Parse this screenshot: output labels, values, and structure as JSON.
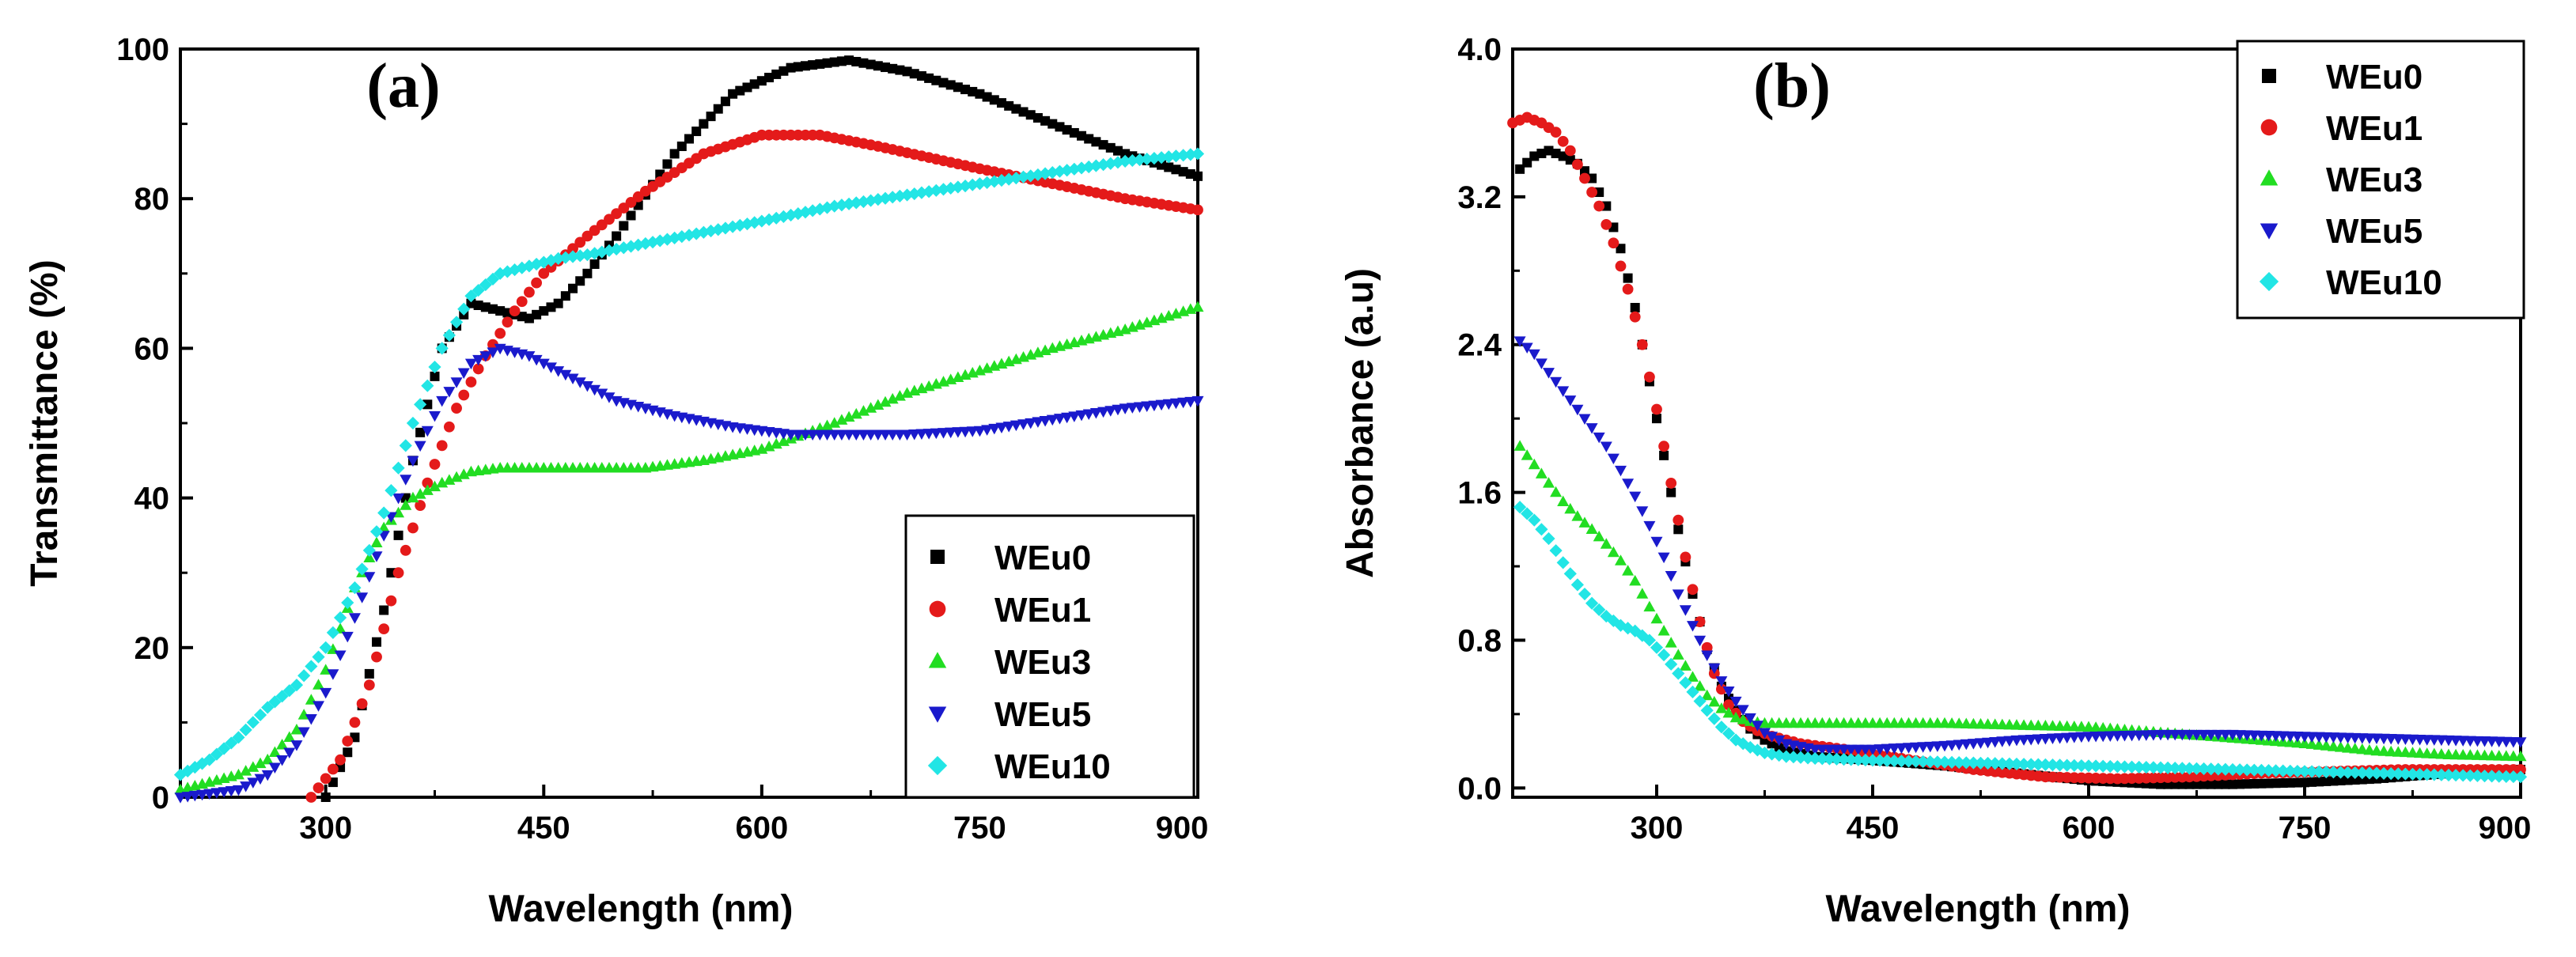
{
  "colors": {
    "WEu0": "#000000",
    "WEu1": "#e41a1a",
    "WEu3": "#22dd22",
    "WEu5": "#1a1acc",
    "WEu10": "#22e5e5",
    "panel_label": "#cc33cc"
  },
  "chart_data": [
    {
      "type": "scatter",
      "panel_label": "(a)",
      "xlabel": "Wavelength (nm)",
      "ylabel": "Transmittance (%)",
      "xlim": [
        200,
        900
      ],
      "ylim": [
        0,
        100
      ],
      "xticks": [
        300,
        450,
        600,
        750,
        900
      ],
      "xtick_labels": [
        "300",
        "450",
        "600",
        "750",
        "900"
      ],
      "yticks": [
        0,
        20,
        40,
        60,
        80,
        100
      ],
      "ytick_labels": [
        "0",
        "20",
        "40",
        "60",
        "80",
        "100"
      ],
      "legend_position": "bottom-right",
      "series": [
        {
          "name": "WEu0",
          "marker": "square",
          "x": [
            300,
            320,
            340,
            360,
            380,
            400,
            420,
            440,
            460,
            480,
            500,
            540,
            580,
            620,
            660,
            700,
            750,
            800,
            850,
            900
          ],
          "y": [
            0,
            8,
            25,
            45,
            60,
            66,
            65,
            64,
            66,
            70,
            75,
            86,
            94,
            97.5,
            98.5,
            97,
            94,
            90,
            86,
            83
          ]
        },
        {
          "name": "WEu1",
          "marker": "circle",
          "x": [
            290,
            310,
            330,
            350,
            370,
            390,
            410,
            430,
            450,
            480,
            520,
            560,
            600,
            640,
            680,
            750,
            800,
            850,
            900
          ],
          "y": [
            0,
            5,
            15,
            30,
            42,
            52,
            59,
            65,
            70,
            75,
            81,
            86,
            88.5,
            88.5,
            87,
            84,
            82,
            80,
            78.5
          ]
        },
        {
          "name": "WEu3",
          "marker": "triangle-up",
          "x": [
            200,
            220,
            240,
            260,
            280,
            300,
            320,
            340,
            360,
            380,
            400,
            420,
            450,
            480,
            520,
            560,
            600,
            650,
            700,
            750,
            800,
            850,
            900
          ],
          "y": [
            1,
            2,
            3,
            5,
            9,
            17,
            28,
            36,
            40,
            42,
            43.5,
            44,
            44,
            44,
            44,
            45,
            46.5,
            50,
            54,
            57,
            60,
            62.5,
            65.5
          ]
        },
        {
          "name": "WEu5",
          "marker": "triangle-down",
          "x": [
            200,
            220,
            240,
            260,
            280,
            300,
            320,
            340,
            360,
            380,
            400,
            420,
            440,
            460,
            480,
            500,
            540,
            580,
            620,
            660,
            700,
            750,
            800,
            850,
            900
          ],
          "y": [
            0,
            0.5,
            1,
            3,
            7,
            14,
            24,
            35,
            45,
            53,
            58,
            60,
            59,
            57,
            55,
            53,
            51,
            49.5,
            48.5,
            48.5,
            48.5,
            49,
            50.5,
            52,
            53
          ]
        },
        {
          "name": "WEu10",
          "marker": "diamond",
          "x": [
            200,
            220,
            240,
            260,
            280,
            300,
            320,
            340,
            360,
            380,
            400,
            420,
            440,
            460,
            480,
            520,
            560,
            600,
            650,
            700,
            750,
            800,
            850,
            900
          ],
          "y": [
            3,
            5,
            8,
            12,
            15,
            20,
            28,
            38,
            50,
            60,
            67,
            70,
            71,
            72,
            72.5,
            74,
            75.5,
            77,
            79,
            80.5,
            82,
            83.5,
            85,
            86
          ]
        }
      ]
    },
    {
      "type": "scatter",
      "panel_label": "(b)",
      "xlabel": "Wavelength (nm)",
      "ylabel": "Absorbance (a.u)",
      "xlim": [
        200,
        900
      ],
      "ylim": [
        -0.05,
        4.0
      ],
      "xticks": [
        300,
        450,
        600,
        750,
        900
      ],
      "xtick_labels": [
        "300",
        "450",
        "600",
        "750",
        "900"
      ],
      "yticks": [
        0,
        0.8,
        1.6,
        2.4,
        3.2,
        4.0
      ],
      "ytick_labels": [
        "0.0",
        "0.8",
        "1.6",
        "2.4",
        "3.2",
        "4.0"
      ],
      "legend_position": "top-right",
      "series": [
        {
          "name": "WEu0",
          "marker": "square",
          "x": [
            205,
            215,
            225,
            235,
            245,
            255,
            265,
            275,
            285,
            295,
            305,
            315,
            325,
            335,
            345,
            355,
            365,
            375,
            390,
            410,
            450,
            500,
            550,
            600,
            650,
            700,
            750,
            800,
            850,
            900
          ],
          "y": [
            3.35,
            3.42,
            3.45,
            3.42,
            3.38,
            3.3,
            3.15,
            2.92,
            2.6,
            2.2,
            1.8,
            1.4,
            1.05,
            0.75,
            0.55,
            0.42,
            0.32,
            0.26,
            0.2,
            0.17,
            0.15,
            0.12,
            0.08,
            0.04,
            0.02,
            0.02,
            0.03,
            0.05,
            0.08,
            0.1
          ]
        },
        {
          "name": "WEu1",
          "marker": "circle",
          "x": [
            200,
            210,
            220,
            230,
            240,
            250,
            260,
            270,
            280,
            290,
            300,
            310,
            320,
            330,
            340,
            350,
            360,
            370,
            380,
            400,
            430,
            470,
            520,
            570,
            620,
            670,
            720,
            770,
            820,
            870,
            900
          ],
          "y": [
            3.6,
            3.63,
            3.6,
            3.55,
            3.45,
            3.3,
            3.15,
            2.95,
            2.7,
            2.4,
            2.05,
            1.65,
            1.25,
            0.9,
            0.62,
            0.45,
            0.36,
            0.31,
            0.28,
            0.24,
            0.21,
            0.16,
            0.1,
            0.06,
            0.05,
            0.06,
            0.08,
            0.09,
            0.1,
            0.1,
            0.1
          ]
        },
        {
          "name": "WEu3",
          "marker": "triangle-up",
          "x": [
            205,
            215,
            225,
            235,
            245,
            255,
            265,
            275,
            285,
            295,
            305,
            315,
            325,
            335,
            345,
            355,
            365,
            375,
            385,
            400,
            450,
            500,
            550,
            600,
            650,
            700,
            750,
            800,
            850,
            900
          ],
          "y": [
            1.85,
            1.75,
            1.65,
            1.55,
            1.47,
            1.4,
            1.32,
            1.23,
            1.12,
            0.98,
            0.85,
            0.72,
            0.6,
            0.5,
            0.43,
            0.38,
            0.36,
            0.35,
            0.35,
            0.35,
            0.35,
            0.35,
            0.34,
            0.33,
            0.3,
            0.27,
            0.24,
            0.2,
            0.18,
            0.17
          ]
        },
        {
          "name": "WEu5",
          "marker": "triangle-down",
          "x": [
            205,
            215,
            225,
            235,
            245,
            255,
            265,
            275,
            285,
            295,
            305,
            315,
            325,
            335,
            345,
            355,
            365,
            375,
            390,
            410,
            450,
            500,
            550,
            600,
            650,
            700,
            750,
            800,
            850,
            900
          ],
          "y": [
            2.42,
            2.35,
            2.25,
            2.15,
            2.05,
            1.95,
            1.85,
            1.72,
            1.58,
            1.42,
            1.25,
            1.05,
            0.88,
            0.72,
            0.58,
            0.47,
            0.38,
            0.3,
            0.24,
            0.21,
            0.21,
            0.23,
            0.26,
            0.28,
            0.29,
            0.29,
            0.28,
            0.27,
            0.26,
            0.25
          ]
        },
        {
          "name": "WEu10",
          "marker": "diamond",
          "x": [
            205,
            215,
            225,
            235,
            245,
            255,
            265,
            275,
            285,
            295,
            305,
            315,
            325,
            335,
            345,
            355,
            365,
            375,
            390,
            410,
            450,
            500,
            550,
            600,
            650,
            700,
            750,
            800,
            850,
            900
          ],
          "y": [
            1.52,
            1.45,
            1.35,
            1.22,
            1.1,
            1.0,
            0.93,
            0.88,
            0.85,
            0.8,
            0.72,
            0.62,
            0.52,
            0.42,
            0.33,
            0.26,
            0.22,
            0.19,
            0.17,
            0.16,
            0.15,
            0.14,
            0.13,
            0.12,
            0.11,
            0.1,
            0.09,
            0.08,
            0.07,
            0.06
          ]
        }
      ]
    }
  ]
}
